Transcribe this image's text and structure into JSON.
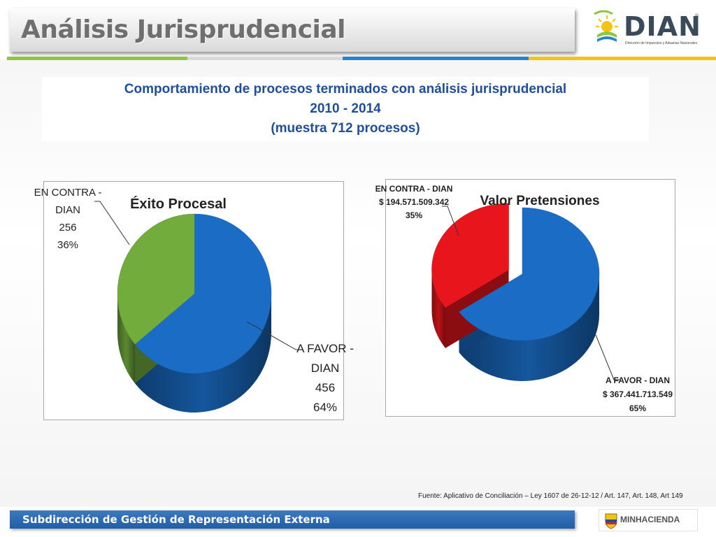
{
  "header": {
    "title": "Análisis Jurisprudencial"
  },
  "logo": {
    "word": "DIAN",
    "registered": "®",
    "subtitle": "Dirección de Impuestos y Aduanas Nacionales"
  },
  "colors": {
    "strip": [
      "#8dc63f",
      "#d9d9d9",
      "#2a83c8",
      "#f2c417"
    ],
    "favor": "#1a6cc4",
    "contra_green": "#72ac3d",
    "contra_red": "#e8161c"
  },
  "heading": {
    "line1": "Comportamiento de procesos terminados con análisis jurisprudencial",
    "line2": "2010 - 2014",
    "line3": "(muestra 712 procesos)"
  },
  "chart_data": [
    {
      "type": "pie",
      "title": "Éxito Procesal",
      "categories": [
        "A FAVOR - DIAN",
        "EN CONTRA - DIAN"
      ],
      "values": [
        456,
        256
      ],
      "percent": [
        64,
        36
      ],
      "labels": [
        {
          "lines": [
            "A FAVOR -",
            "DIAN",
            "456",
            "64%"
          ]
        },
        {
          "lines": [
            "EN CONTRA -",
            "DIAN",
            "256",
            "36%"
          ]
        }
      ],
      "colors": [
        "#1a6cc4",
        "#72ac3d"
      ]
    },
    {
      "type": "pie",
      "title": "Valor Pretensiones",
      "categories": [
        "A FAVOR - DIAN",
        "EN CONTRA - DIAN"
      ],
      "values": [
        367441713549,
        194571509342
      ],
      "percent": [
        65,
        35
      ],
      "labels": [
        {
          "lines": [
            "A FAVOR - DIAN",
            "$ 367.441.713.549",
            "65%"
          ]
        },
        {
          "lines": [
            "EN CONTRA - DIAN",
            "$ 194.571.509.342",
            "35%"
          ]
        }
      ],
      "colors": [
        "#1a6cc4",
        "#e8161c"
      ]
    }
  ],
  "source": "Fuente: Aplicativo de Conciliación – Ley 1607 de 26-12-12 / Art. 147, Art. 148, Art 149",
  "footer": {
    "text": "Subdirección de Gestión de Representación Externa",
    "minhacienda": "MINHACIENDA"
  }
}
